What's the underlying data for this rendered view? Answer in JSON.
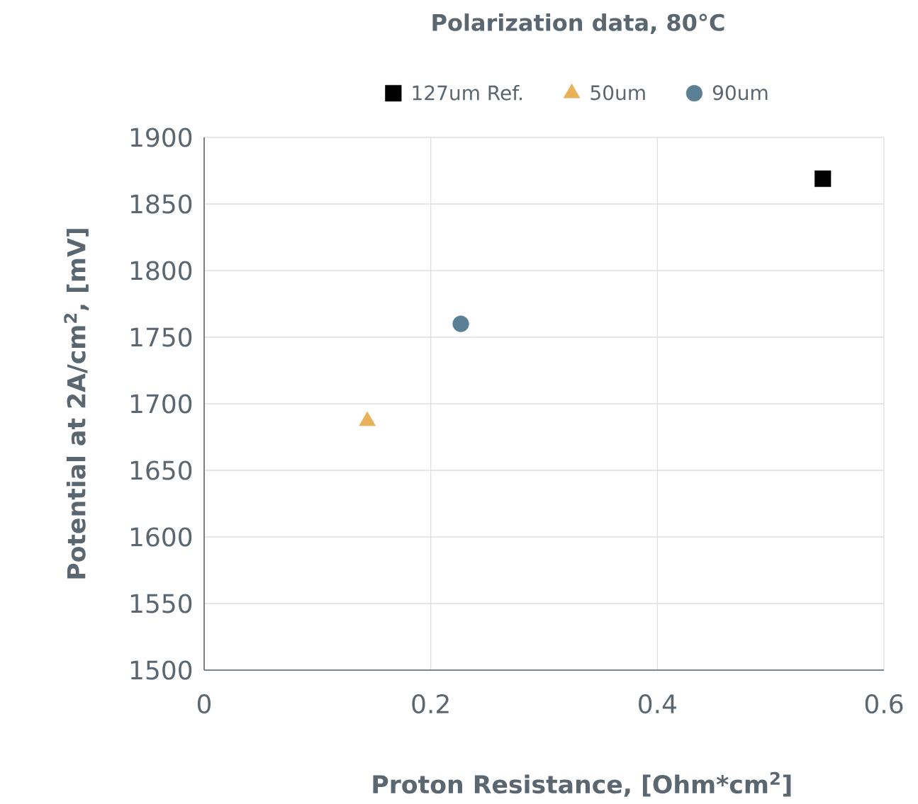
{
  "chart_data": {
    "type": "scatter",
    "title": "Polarization data, 80°C",
    "xlabel": "Proton Resistance, [Ohm*cm$^{2}$]",
    "ylabel": "Potential at 2A/cm$^{2}$, [mV]",
    "series": [
      {
        "name": "127um Ref.",
        "color": "#000000",
        "marker": "square",
        "x": [
          0.546
        ],
        "values": [
          1869
        ]
      },
      {
        "name": "50um",
        "color": "#e8b15a",
        "marker": "triangle",
        "x": [
          0.144
        ],
        "values": [
          1687
        ]
      },
      {
        "name": "90um",
        "color": "#5b7f95",
        "marker": "circle",
        "x": [
          0.2265
        ],
        "values": [
          1760
        ]
      }
    ],
    "xlim": [
      0,
      0.6
    ],
    "ylim": [
      1500,
      1900
    ],
    "xticks": [
      0,
      0.2,
      0.4,
      0.6
    ],
    "yticks": [
      1500,
      1550,
      1600,
      1650,
      1700,
      1750,
      1800,
      1850,
      1900
    ],
    "grid": true,
    "legend": "top"
  }
}
